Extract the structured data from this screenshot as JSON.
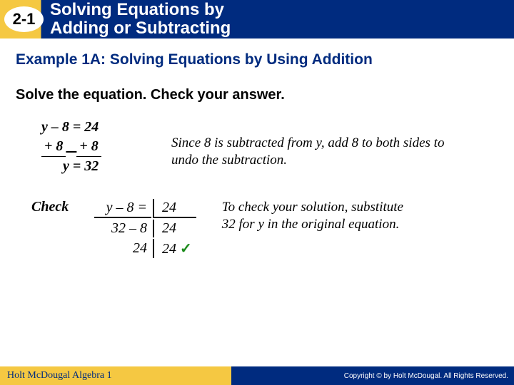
{
  "header": {
    "lesson_number": "2-1",
    "title_line1": "Solving Equations by",
    "title_line2": "Adding or Subtracting"
  },
  "example_heading": "Example 1A: Solving Equations by Using Addition",
  "instruction": "Solve the equation. Check your answer.",
  "solve": {
    "line1": "y – 8 = 24",
    "line2_left": "+ 8",
    "line2_right": "+ 8",
    "line3": "y = 32",
    "explanation": "Since 8 is subtracted from y, add 8 to both sides to undo the subtraction."
  },
  "check": {
    "label": "Check",
    "top_left": "y – 8",
    "top_eq": "=",
    "top_right": "24",
    "mid_left": "32 – 8",
    "mid_right": "24",
    "bot_left": "24",
    "bot_right": "24",
    "checkmark": "✓",
    "explanation": "To check your solution, substitute 32 for y in the original equation."
  },
  "footer": {
    "left": "Holt McDougal Algebra 1",
    "right": "Copyright © by Holt McDougal. All Rights Reserved."
  },
  "colors": {
    "blue": "#002b7f",
    "gold": "#f5c842",
    "green": "#1a8a1a"
  }
}
